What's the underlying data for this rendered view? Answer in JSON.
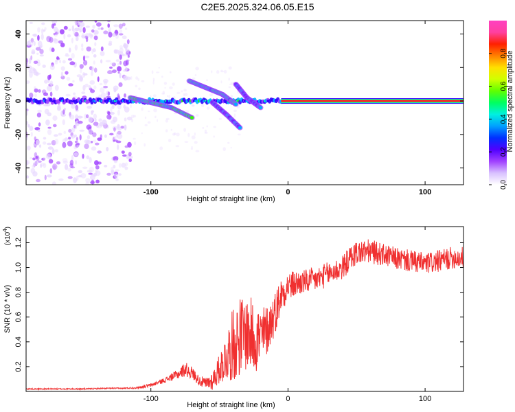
{
  "title": "C2E5.2025.324.06.05.E15",
  "chart_data": [
    {
      "type": "heatmap",
      "title": "C2E5.2025.324.06.05.E15",
      "xlabel": "Height of straight line (km)",
      "ylabel": "Frequency (Hz)",
      "xlim": [
        -191,
        128
      ],
      "ylim": [
        -50,
        48
      ],
      "xticks": [
        -100,
        0,
        100
      ],
      "yticks": [
        -40,
        -20,
        0,
        20,
        40
      ],
      "colorbar": {
        "label": "Normalized spectral amplitude",
        "range": [
          0,
          1
        ],
        "ticks": [
          "0.0",
          "0.2",
          "0.4",
          "0.6",
          "0.8"
        ],
        "colors": [
          "#e8d8ff",
          "#a040ff",
          "#3000ff",
          "#00b0ff",
          "#00ffa0",
          "#30ff00",
          "#c8ff00",
          "#ffe000",
          "#ff7000",
          "#ff0000",
          "#ff40c0"
        ]
      },
      "features": [
        {
          "name": "carrier",
          "x_range": [
            -191,
            128
          ],
          "frequency": 0,
          "amplitude_far": 0.15,
          "amplitude_near": 0.95
        },
        {
          "name": "branch-1",
          "points": [
            [
              -115,
              2
            ],
            [
              -100,
              -1
            ],
            [
              -85,
              -4
            ],
            [
              -70,
              -10
            ]
          ],
          "amplitude": 0.45
        },
        {
          "name": "branch-2",
          "points": [
            [
              -72,
              12
            ],
            [
              -60,
              8
            ],
            [
              -48,
              4
            ],
            [
              -38,
              -2
            ]
          ],
          "amplitude": 0.4
        },
        {
          "name": "branch-3",
          "points": [
            [
              -55,
              -1
            ],
            [
              -45,
              -8
            ],
            [
              -35,
              -16
            ]
          ],
          "amplitude": 0.3
        },
        {
          "name": "branch-4",
          "points": [
            [
              -38,
              10
            ],
            [
              -30,
              2
            ],
            [
              -20,
              -4
            ]
          ],
          "amplitude": 0.3
        },
        {
          "name": "noise-region",
          "x_range": [
            -191,
            -115
          ],
          "frequency_range": [
            -50,
            48
          ],
          "amplitude": 0.12
        }
      ]
    },
    {
      "type": "line",
      "xlabel": "Height of straight line (km)",
      "ylabel": "SNR (10 * v/v)",
      "multiplier": "(x10",
      "multiplier_exp": "4",
      "multiplier_close": ")",
      "xlim": [
        -191,
        128
      ],
      "ylim": [
        0,
        1.33
      ],
      "xticks": [
        -100,
        0,
        100
      ],
      "yticks": [
        0.2,
        0.4,
        0.6,
        0.8,
        1.0,
        1.2
      ],
      "series": [
        {
          "name": "SNR",
          "color": "#f03030",
          "x": [
            -191,
            -170,
            -150,
            -130,
            -120,
            -110,
            -100,
            -90,
            -80,
            -75,
            -70,
            -65,
            -60,
            -55,
            -50,
            -45,
            -40,
            -35,
            -30,
            -25,
            -20,
            -15,
            -10,
            -5,
            0,
            10,
            20,
            30,
            40,
            45,
            50,
            60,
            70,
            80,
            90,
            100,
            110,
            120,
            128
          ],
          "values": [
            0.02,
            0.02,
            0.02,
            0.025,
            0.025,
            0.03,
            0.05,
            0.09,
            0.14,
            0.18,
            0.15,
            0.09,
            0.06,
            0.09,
            0.18,
            0.28,
            0.38,
            0.45,
            0.47,
            0.45,
            0.42,
            0.5,
            0.62,
            0.78,
            0.85,
            0.88,
            0.9,
            0.95,
            1.0,
            1.07,
            1.12,
            1.13,
            1.1,
            1.07,
            1.05,
            1.03,
            1.05,
            1.08,
            1.08
          ],
          "noise": [
            0.005,
            0.005,
            0.005,
            0.005,
            0.005,
            0.008,
            0.015,
            0.02,
            0.04,
            0.06,
            0.05,
            0.04,
            0.05,
            0.08,
            0.12,
            0.2,
            0.3,
            0.32,
            0.3,
            0.3,
            0.28,
            0.2,
            0.18,
            0.14,
            0.12,
            0.1,
            0.1,
            0.1,
            0.1,
            0.1,
            0.1,
            0.1,
            0.09,
            0.09,
            0.09,
            0.09,
            0.09,
            0.09,
            0.09
          ]
        }
      ]
    }
  ]
}
